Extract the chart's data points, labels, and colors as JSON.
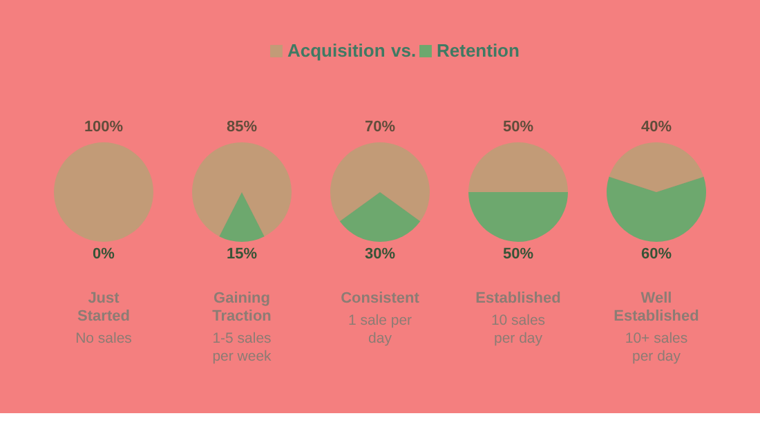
{
  "chart_data": [
    {
      "type": "pie",
      "title": "Just Started",
      "subtitle": "No sales",
      "categories": [
        "Acquisition",
        "Retention"
      ],
      "values": [
        100,
        0
      ],
      "colors": [
        "#c29b77",
        "#6da86e"
      ],
      "value_labels": [
        "100%",
        "0%"
      ],
      "legend": "top",
      "annotations": [
        "vs."
      ]
    },
    {
      "type": "pie",
      "title": "Gaining Traction",
      "subtitle": "1-5 sales per week",
      "categories": [
        null,
        null
      ],
      "values": [
        85,
        15
      ],
      "colors": [
        "#c29b77",
        "#6da86e"
      ],
      "value_labels": [
        "85%",
        "15%"
      ]
    },
    {
      "type": "pie",
      "title": "Consistent",
      "subtitle": "1 sale per day",
      "categories": [
        null,
        null
      ],
      "values": [
        70,
        30
      ],
      "colors": [
        "#c29b77",
        "#6da86e"
      ],
      "value_labels": [
        "70%",
        "30%"
      ]
    },
    {
      "type": "pie",
      "title": "Established",
      "subtitle": "10 sales per day",
      "categories": [
        null,
        null
      ],
      "values": [
        50,
        50
      ],
      "colors": [
        "#c29b77",
        "#6da86e"
      ],
      "value_labels": [
        "50%",
        "50%"
      ]
    },
    {
      "type": "pie",
      "title": "Well Established",
      "subtitle": "10+ sales per day",
      "categories": [
        null,
        null
      ],
      "values": [
        40,
        60
      ],
      "colors": [
        "#c29b77",
        "#6da86e"
      ],
      "value_labels": [
        "40%",
        "60%"
      ]
    }
  ]
}
